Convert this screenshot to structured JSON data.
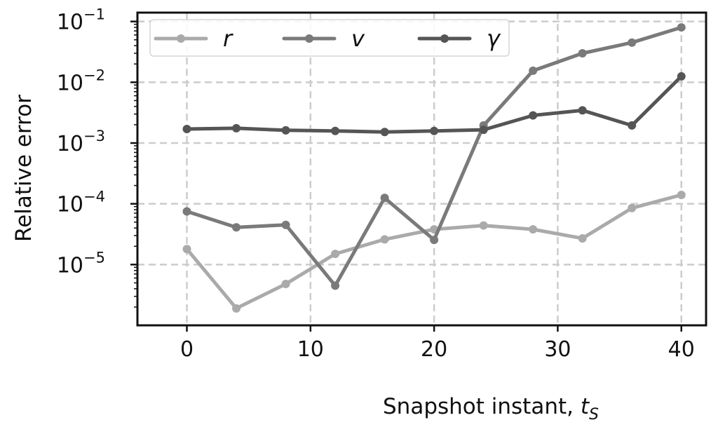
{
  "chart_data": {
    "type": "line",
    "xlabel": "Snapshot instant, ",
    "xlabel_symbol": "t",
    "xlabel_subscript": "S",
    "ylabel": "Relative error",
    "x": [
      0,
      4,
      8,
      12,
      16,
      20,
      24,
      28,
      32,
      36,
      40
    ],
    "xlim": [
      -4,
      42
    ],
    "ylim": [
      1e-06,
      0.14
    ],
    "yscale": "log",
    "grid": true,
    "legend_position": "top",
    "x_ticks": [
      {
        "value": 0,
        "label": "0"
      },
      {
        "value": 10,
        "label": "10"
      },
      {
        "value": 20,
        "label": "20"
      },
      {
        "value": 30,
        "label": "30"
      },
      {
        "value": 40,
        "label": "40"
      }
    ],
    "y_ticks": [
      {
        "value": 1e-05,
        "base": "10",
        "exponent": "−5"
      },
      {
        "value": 0.0001,
        "base": "10",
        "exponent": "−4"
      },
      {
        "value": 0.001,
        "base": "10",
        "exponent": "−3"
      },
      {
        "value": 0.01,
        "base": "10",
        "exponent": "−2"
      },
      {
        "value": 0.1,
        "base": "10",
        "exponent": "−1"
      }
    ],
    "series": [
      {
        "name": "r",
        "color": "#aaaaaa",
        "values": [
          1.8e-05,
          1.9e-06,
          4.8e-06,
          1.5e-05,
          2.6e-05,
          3.8e-05,
          4.4e-05,
          3.8e-05,
          2.7e-05,
          8.5e-05,
          0.00014
        ]
      },
      {
        "name": "v",
        "color": "#7a7a7a",
        "values": [
          7.5e-05,
          4.1e-05,
          4.5e-05,
          4.5e-06,
          0.000125,
          2.55e-05,
          0.00195,
          0.0155,
          0.03,
          0.045,
          0.08
        ]
      },
      {
        "name": "γ",
        "color": "#555555",
        "values": [
          0.0017,
          0.00175,
          0.00162,
          0.00158,
          0.00152,
          0.00158,
          0.00165,
          0.00285,
          0.00345,
          0.00195,
          0.0125
        ]
      }
    ]
  }
}
